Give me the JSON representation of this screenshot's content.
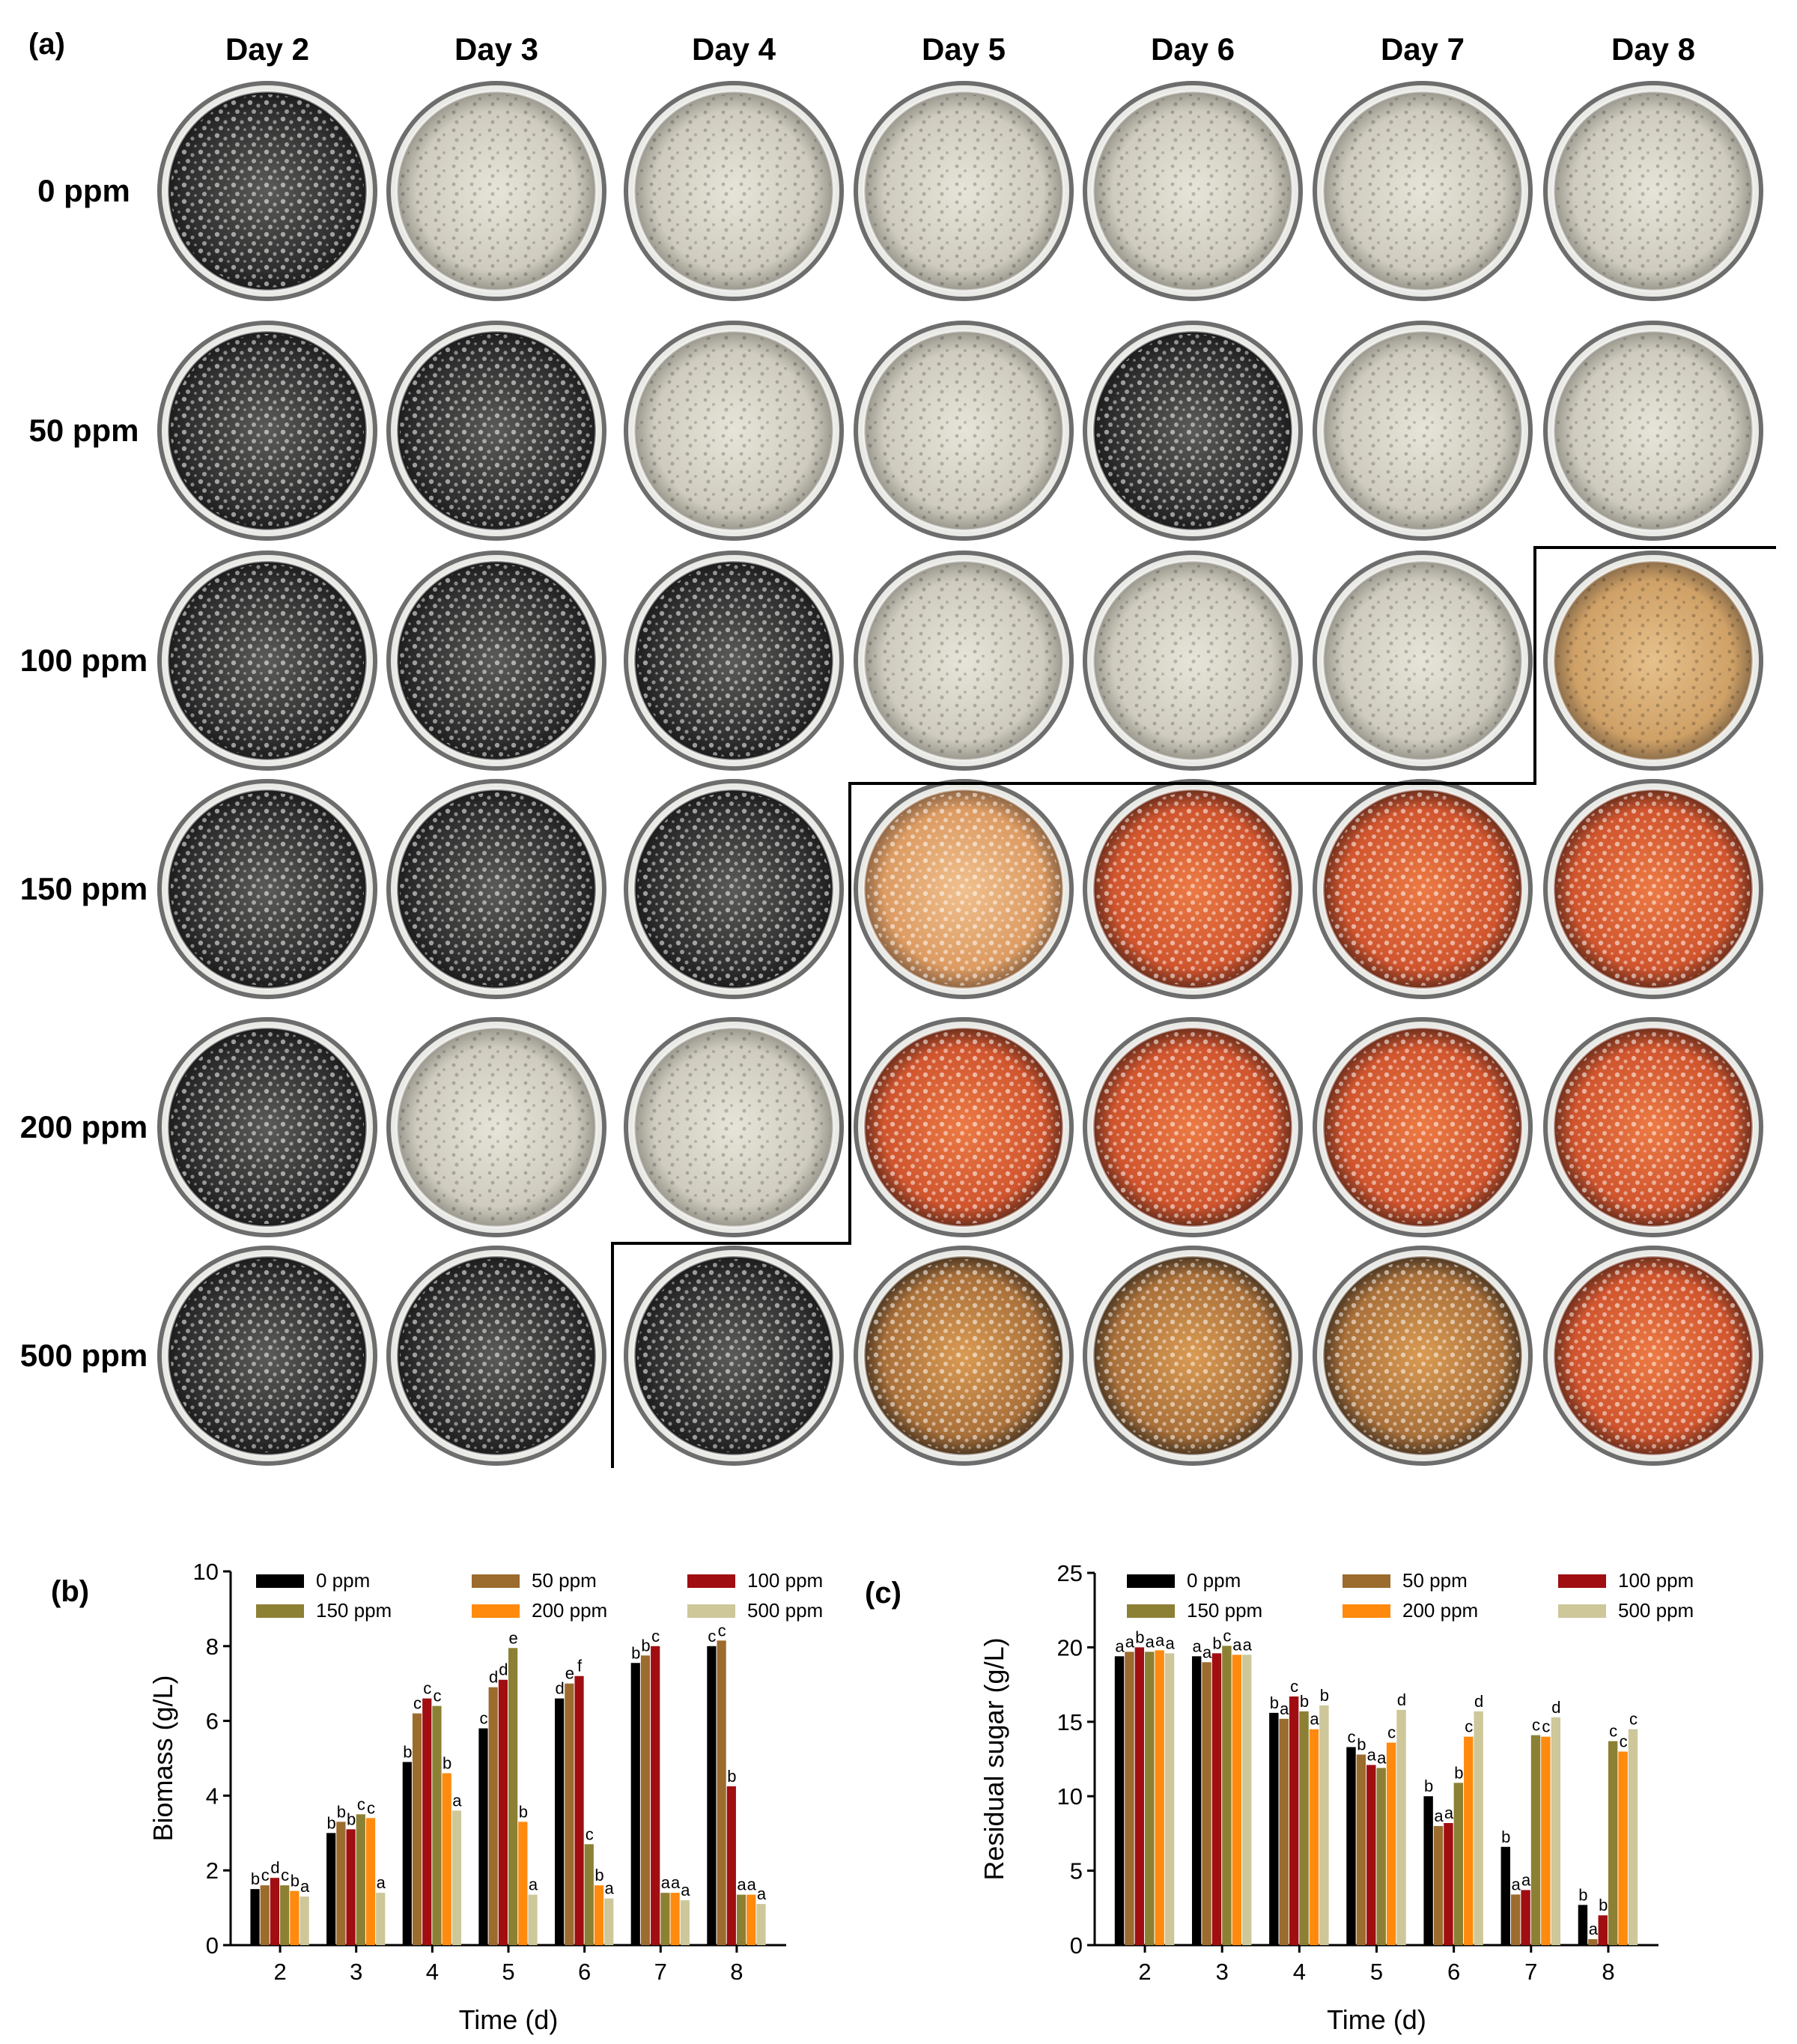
{
  "panel_a": {
    "label": "(a)",
    "days": [
      "Day 2",
      "Day 3",
      "Day 4",
      "Day 5",
      "Day 6",
      "Day 7",
      "Day 8"
    ],
    "concentrations": [
      "0 ppm",
      "50 ppm",
      "100 ppm",
      "150 ppm",
      "200 ppm",
      "500 ppm"
    ],
    "plate_tint": [
      [
        "dark",
        "light",
        "light",
        "light",
        "light",
        "light",
        "light"
      ],
      [
        "dark",
        "dark",
        "light",
        "light",
        "dark",
        "light",
        "light"
      ],
      [
        "dark",
        "dark",
        "dark",
        "light",
        "light",
        "light",
        "tan"
      ],
      [
        "dark",
        "dark",
        "dark",
        "peach",
        "orange",
        "orange",
        "orange"
      ],
      [
        "dark",
        "light",
        "light",
        "orange",
        "orange",
        "orange",
        "orange"
      ],
      [
        "dark",
        "dark",
        "dark",
        "amber",
        "amber",
        "amber",
        "orange"
      ]
    ],
    "tint_colors": {
      "dark": "#3b3b3b",
      "light": "#d8d6ca",
      "tan": "#d9b27a",
      "peach": "#e7b07c",
      "orange": "#e0633a",
      "amber": "#cf8a3f"
    }
  },
  "chart_data": [
    {
      "type": "bar",
      "panel_label": "(b)",
      "xlabel": "Time (d)",
      "ylabel": "Biomass (g/L)",
      "ylim": [
        0,
        10
      ],
      "yticks": [
        "0",
        "2",
        "4",
        "6",
        "8",
        "10"
      ],
      "categories": [
        "2",
        "3",
        "4",
        "5",
        "6",
        "7",
        "8"
      ],
      "legend": "top",
      "series": [
        {
          "name": "0 ppm",
          "color": "#000000",
          "values": [
            1.5,
            3.0,
            4.9,
            5.8,
            6.6,
            7.55,
            8.0
          ],
          "labels": [
            "b",
            "b",
            "b",
            "c",
            "d",
            "b",
            "c"
          ]
        },
        {
          "name": "50 ppm",
          "color": "#9c6b2e",
          "values": [
            1.6,
            3.3,
            6.2,
            6.9,
            7.0,
            7.75,
            8.15
          ],
          "labels": [
            "c",
            "b",
            "c",
            "d",
            "e",
            "b",
            "c"
          ]
        },
        {
          "name": "100 ppm",
          "color": "#a00e12",
          "values": [
            1.8,
            3.1,
            6.6,
            7.1,
            7.2,
            8.0,
            4.25
          ],
          "labels": [
            "d",
            "b",
            "c",
            "d",
            "f",
            "c",
            "b"
          ]
        },
        {
          "name": "150 ppm",
          "color": "#8c8034",
          "values": [
            1.6,
            3.5,
            6.4,
            7.95,
            2.7,
            1.4,
            1.35
          ],
          "labels": [
            "c",
            "c",
            "c",
            "e",
            "c",
            "a",
            "a"
          ]
        },
        {
          "name": "200 ppm",
          "color": "#ff8a0e",
          "values": [
            1.45,
            3.4,
            4.6,
            3.3,
            1.6,
            1.4,
            1.35
          ],
          "labels": [
            "b",
            "c",
            "b",
            "b",
            "b",
            "a",
            "a"
          ]
        },
        {
          "name": "500 ppm",
          "color": "#cdc79a",
          "values": [
            1.3,
            1.4,
            3.6,
            1.35,
            1.25,
            1.2,
            1.1
          ],
          "labels": [
            "a",
            "a",
            "a",
            "a",
            "a",
            "a",
            "a"
          ]
        }
      ]
    },
    {
      "type": "bar",
      "panel_label": "(c)",
      "xlabel": "Time (d)",
      "ylabel": "Residual sugar (g/L)",
      "ylim": [
        0,
        25
      ],
      "yticks": [
        "0",
        "5",
        "10",
        "15",
        "20",
        "25"
      ],
      "categories": [
        "2",
        "3",
        "4",
        "5",
        "6",
        "7",
        "8"
      ],
      "legend": "top",
      "series": [
        {
          "name": "0 ppm",
          "color": "#000000",
          "values": [
            19.4,
            19.4,
            15.6,
            13.3,
            10.0,
            6.6,
            2.7
          ],
          "labels": [
            "a",
            "a",
            "b",
            "c",
            "b",
            "b",
            "b"
          ]
        },
        {
          "name": "50 ppm",
          "color": "#9c6b2e",
          "values": [
            19.7,
            19.0,
            15.2,
            12.8,
            8.0,
            3.4,
            0.4
          ],
          "labels": [
            "a",
            "a",
            "a",
            "b",
            "a",
            "a",
            "a"
          ]
        },
        {
          "name": "100 ppm",
          "color": "#a00e12",
          "values": [
            20.0,
            19.6,
            16.7,
            12.1,
            8.2,
            3.7,
            2.0
          ],
          "labels": [
            "b",
            "b",
            "c",
            "a",
            "a",
            "a",
            "b"
          ]
        },
        {
          "name": "150 ppm",
          "color": "#8c8034",
          "values": [
            19.7,
            20.1,
            15.7,
            11.9,
            10.9,
            14.1,
            13.7
          ],
          "labels": [
            "a",
            "c",
            "b",
            "a",
            "b",
            "c",
            "c"
          ]
        },
        {
          "name": "200 ppm",
          "color": "#ff8a0e",
          "values": [
            19.8,
            19.5,
            14.5,
            13.6,
            14.0,
            14.0,
            13.0
          ],
          "labels": [
            "a",
            "a",
            "a",
            "c",
            "c",
            "c",
            "c"
          ]
        },
        {
          "name": "500 ppm",
          "color": "#cdc79a",
          "values": [
            19.6,
            19.5,
            16.1,
            15.8,
            15.7,
            15.3,
            14.5
          ],
          "labels": [
            "a",
            "a",
            "b",
            "d",
            "d",
            "d",
            "c"
          ]
        }
      ]
    }
  ]
}
